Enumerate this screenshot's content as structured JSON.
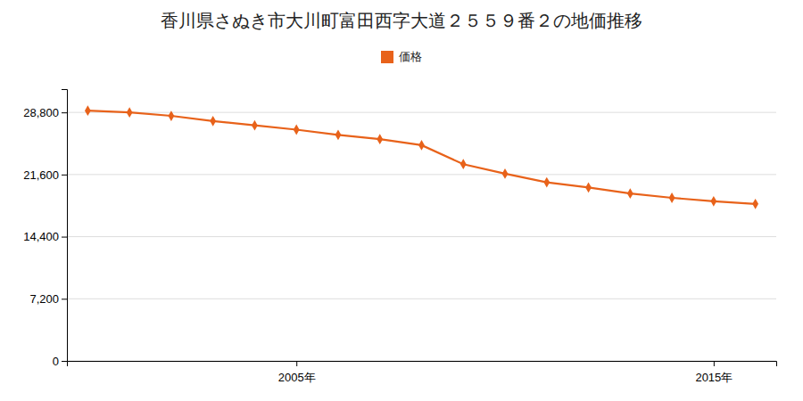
{
  "chart_data": {
    "type": "line",
    "title": "香川県さぬき市大川町富田西字大道２５５９番２の地価推移",
    "x": [
      2000,
      2001,
      2002,
      2003,
      2004,
      2005,
      2006,
      2007,
      2008,
      2009,
      2010,
      2011,
      2012,
      2013,
      2014,
      2015,
      2016
    ],
    "series": [
      {
        "name": "価格",
        "color": "#E8621A",
        "marker": "diamond",
        "values": [
          29000,
          28800,
          28400,
          27800,
          27300,
          26800,
          26200,
          25700,
          25000,
          22800,
          21700,
          20700,
          20100,
          19400,
          18900,
          18500,
          18200
        ]
      }
    ],
    "xlim": [
      1999.5,
      2016.5
    ],
    "xticks": [
      {
        "value": 2005,
        "label": "2005年"
      },
      {
        "value": 2015,
        "label": "2015年"
      }
    ],
    "ylim": [
      0,
      31500
    ],
    "yticks": [
      0,
      {
        "value": 7200,
        "label": "7,200"
      },
      {
        "value": 14400,
        "label": "14,400"
      },
      {
        "value": 21600,
        "label": "21,600"
      },
      {
        "value": 28800,
        "label": "28,800"
      }
    ],
    "grid": true,
    "legend": "top"
  }
}
